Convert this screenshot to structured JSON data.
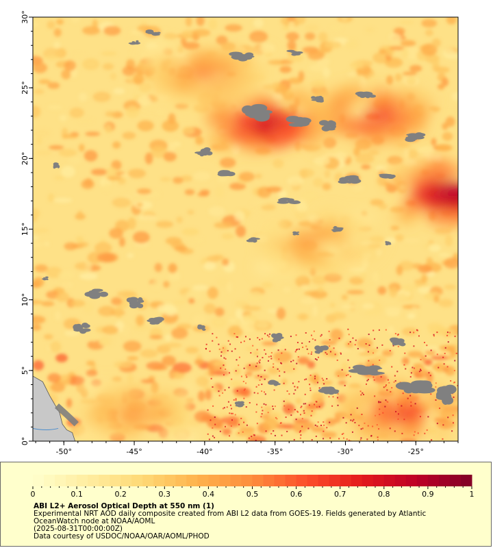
{
  "map": {
    "x_axis_labels": [
      "-50°",
      "-45°",
      "-40°",
      "-35°",
      "-30°",
      "-25°"
    ],
    "y_axis_labels": [
      "0°",
      "5°",
      "10°",
      "15°",
      "20°",
      "25°",
      "30°"
    ],
    "x_axis_values": [
      -50,
      -45,
      -40,
      -35,
      -30,
      -25
    ],
    "y_axis_values": [
      0,
      5,
      10,
      15,
      20,
      25,
      30
    ],
    "lon_range": [
      -52.2,
      -22
    ],
    "lat_range": [
      0,
      30
    ],
    "colors": {
      "land": "#c8c8c8",
      "no_data": "#808080",
      "river": "#4a8ccc"
    },
    "plumes": [
      {
        "lon": -35.5,
        "lat": 22.5,
        "aod": 0.9
      },
      {
        "lon": -22.5,
        "lat": 17.5,
        "aod": 1.0
      },
      {
        "lon": -28,
        "lat": 23,
        "aod": 0.75
      },
      {
        "lon": -40,
        "lat": 26,
        "aod": 0.55
      },
      {
        "lon": -26,
        "lat": 2,
        "aod": 0.7
      },
      {
        "lon": -45,
        "lat": 2,
        "aod": 0.5
      },
      {
        "lon": -32,
        "lat": 14,
        "aod": 0.5
      }
    ]
  },
  "legend": {
    "colorbar_min": 0,
    "colorbar_max": 1,
    "tick_labels": [
      "0",
      "0.1",
      "0.2",
      "0.3",
      "0.4",
      "0.5",
      "0.6",
      "0.7",
      "0.8",
      "0.9",
      "1"
    ],
    "colormap": [
      "#ffffcc",
      "#ffeda0",
      "#fed976",
      "#feb24c",
      "#fd8d3c",
      "#fc4e2a",
      "#e31a1c",
      "#bd0026",
      "#800026"
    ],
    "title": "ABI L2+ Aerosol Optical Depth at 550 nm (1)",
    "line1": "Experimental NRT AOD daily composite created from ABI L2 data from GOES-19. Fields generated by Atlantic",
    "line2": "OceanWatch node at NOAA/AOML",
    "line3": "(2025-08-31T00:00:00Z)",
    "line4": "Data courtesy of USDOC/NOAA/OAR/AOML/PHOD"
  }
}
